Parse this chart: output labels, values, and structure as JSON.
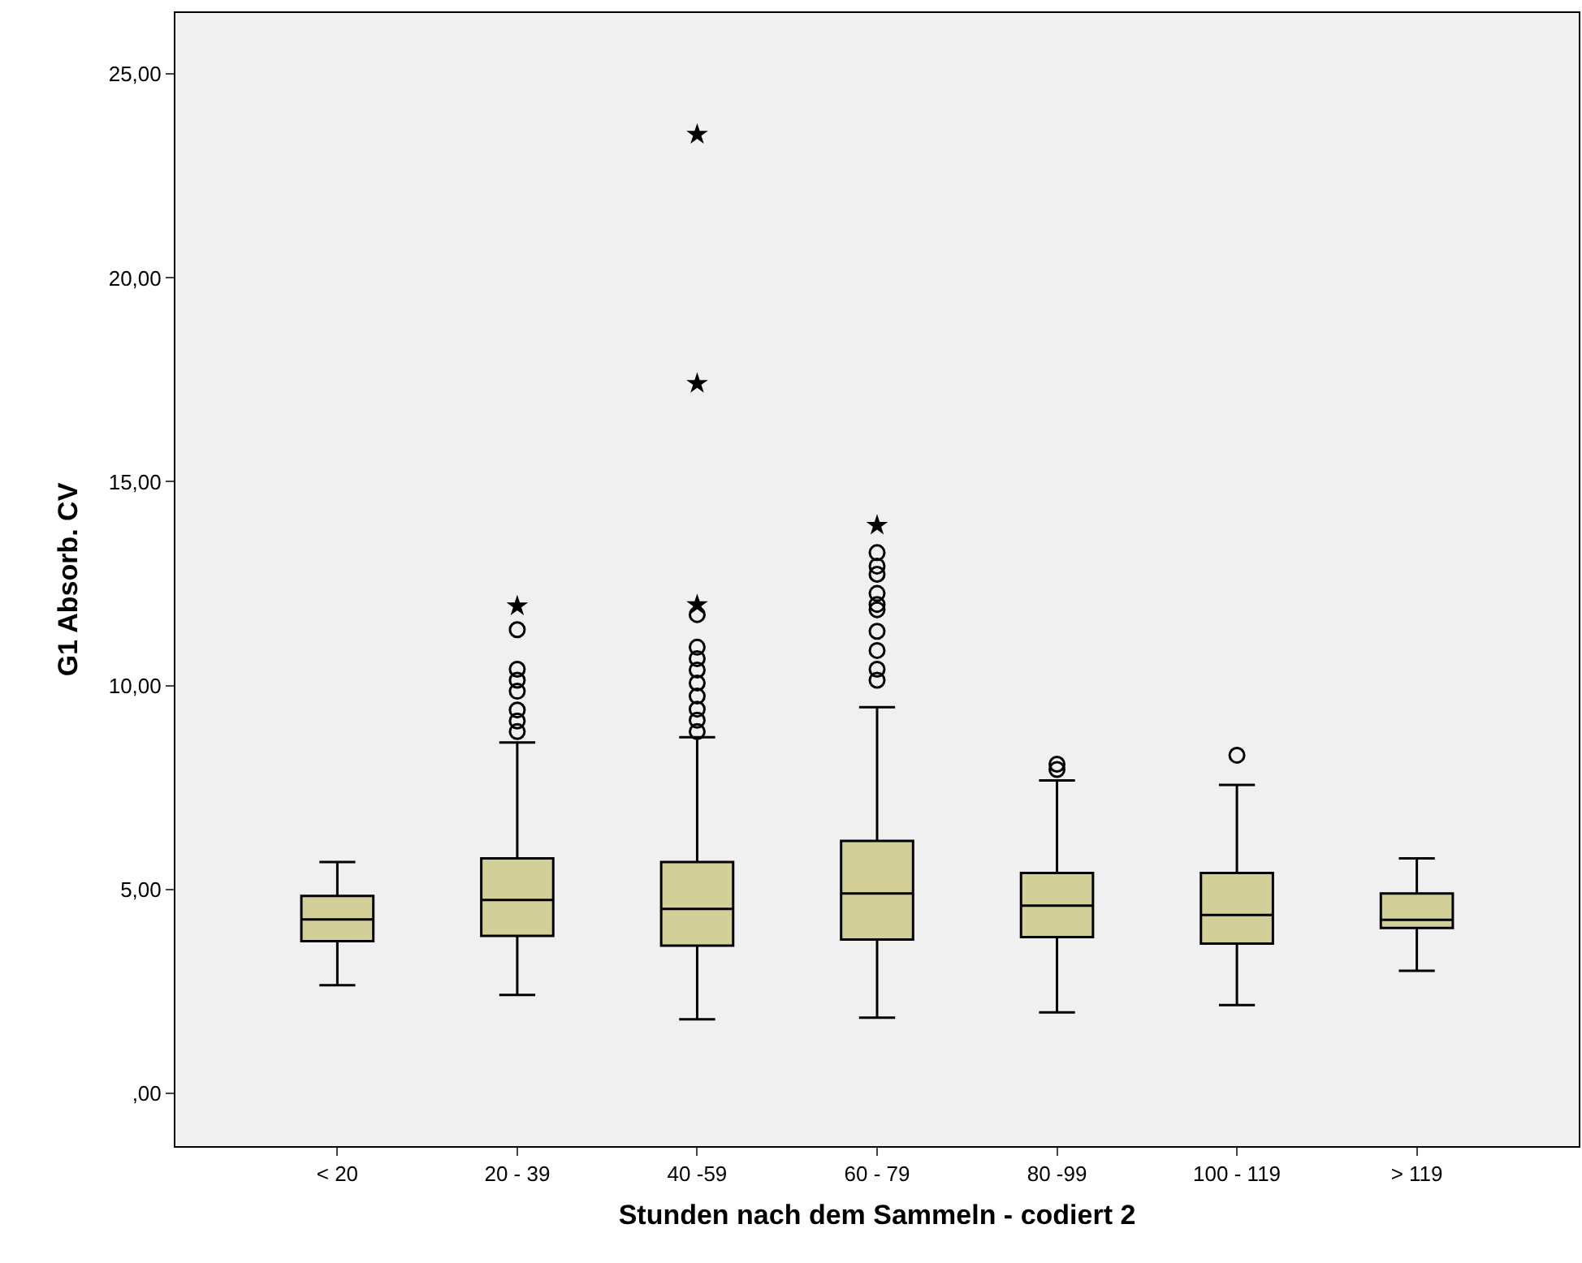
{
  "chart_data": {
    "type": "box",
    "xlabel": "Stunden nach dem Sammeln - codiert 2",
    "ylabel": "G1 Absorb. CV",
    "categories": [
      "< 20",
      "20 - 39",
      "40 -59",
      "60 - 79",
      "80 -99",
      "100 - 119",
      "> 119"
    ],
    "ylim": [
      -1.3,
      26.5
    ],
    "yticks": [
      {
        "value": 0,
        "label": ",00"
      },
      {
        "value": 5,
        "label": "5,00"
      },
      {
        "value": 10,
        "label": "10,00"
      },
      {
        "value": 15,
        "label": "15,00"
      },
      {
        "value": 20,
        "label": "20,00"
      },
      {
        "value": 25,
        "label": "25,00"
      }
    ],
    "grid": false,
    "series": [
      {
        "color": "#d3cf98",
        "boxes": [
          {
            "low": 2.65,
            "q1": 3.73,
            "median": 4.26,
            "q3": 4.84,
            "high": 5.67
          },
          {
            "low": 2.41,
            "q1": 3.86,
            "median": 4.74,
            "q3": 5.76,
            "high": 8.6,
            "outliers": [
              11.37,
              10.4,
              10.13,
              9.86,
              9.4,
              9.13,
              8.87
            ]
          },
          {
            "low": 1.81,
            "q1": 3.62,
            "median": 4.52,
            "q3": 5.67,
            "high": 8.73,
            "outliers": [
              11.74,
              10.94,
              10.66,
              10.38,
              10.06,
              9.74,
              9.42,
              9.15,
              8.87
            ]
          },
          {
            "low": 1.85,
            "q1": 3.77,
            "median": 4.9,
            "q3": 6.19,
            "high": 9.47,
            "outliers": [
              13.26,
              12.93,
              12.73,
              12.26,
              11.99,
              11.86,
              11.33,
              10.86,
              10.4,
              10.13
            ]
          },
          {
            "low": 1.98,
            "q1": 3.83,
            "median": 4.6,
            "q3": 5.4,
            "high": 7.67,
            "outliers": [
              8.07,
              7.94
            ]
          },
          {
            "low": 2.16,
            "q1": 3.67,
            "median": 4.37,
            "q3": 5.4,
            "high": 7.56,
            "outliers": [
              8.29
            ]
          },
          {
            "low": 3.0,
            "q1": 4.05,
            "median": 4.25,
            "q3": 4.9,
            "high": 5.76
          }
        ]
      },
      {
        "type": "scatter",
        "marker": "star",
        "color": "#000000",
        "x": [
          "20 - 39",
          "40 -59",
          "40 -59",
          "40 -59",
          "60 - 79"
        ],
        "values": [
          11.95,
          23.52,
          17.41,
          11.98,
          13.93
        ]
      }
    ]
  }
}
